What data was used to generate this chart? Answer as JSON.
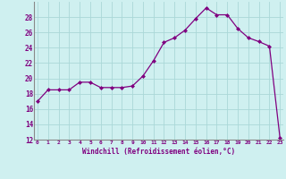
{
  "x": [
    0,
    1,
    2,
    3,
    4,
    5,
    6,
    7,
    8,
    9,
    10,
    11,
    12,
    13,
    14,
    15,
    16,
    17,
    18,
    19,
    20,
    21,
    22,
    23
  ],
  "y": [
    17.0,
    18.5,
    18.5,
    18.5,
    19.5,
    19.5,
    18.8,
    18.8,
    18.8,
    19.0,
    20.3,
    22.3,
    24.7,
    25.3,
    26.3,
    27.8,
    29.2,
    28.3,
    28.3,
    26.5,
    25.3,
    24.8,
    24.2,
    12.2
  ],
  "line_color": "#800080",
  "marker": "D",
  "marker_size": 2.0,
  "bg_color": "#cff0f0",
  "grid_color": "#aad8d8",
  "xlabel": "Windchill (Refroidissement éolien,°C)",
  "tick_color": "#800080",
  "ylim": [
    12,
    30
  ],
  "yticks": [
    12,
    14,
    16,
    18,
    20,
    22,
    24,
    26,
    28
  ],
  "xticks": [
    0,
    1,
    2,
    3,
    4,
    5,
    6,
    7,
    8,
    9,
    10,
    11,
    12,
    13,
    14,
    15,
    16,
    17,
    18,
    19,
    20,
    21,
    22,
    23
  ],
  "xlim": [
    -0.3,
    23.3
  ]
}
